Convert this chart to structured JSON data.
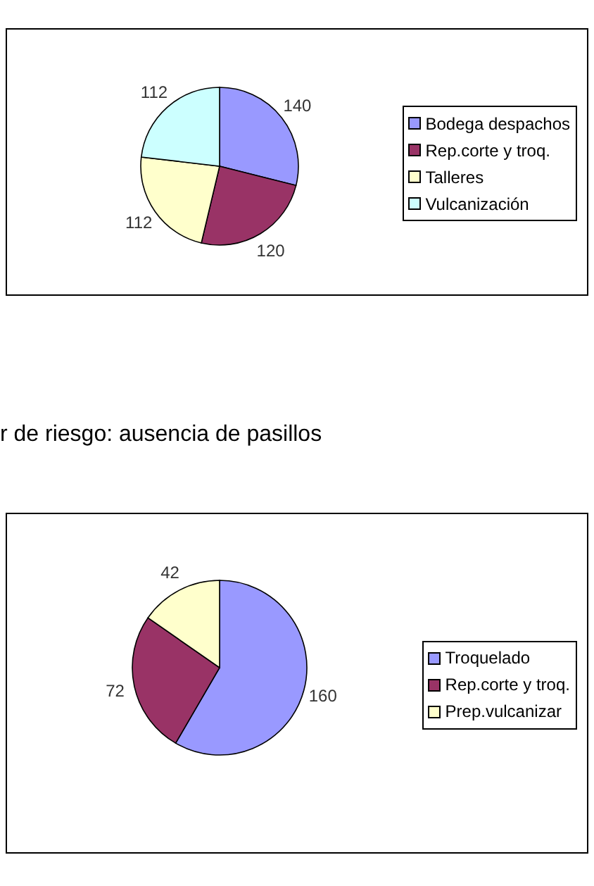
{
  "chart_data": [
    {
      "type": "pie",
      "categories": [
        "Bodega despachos",
        "Rep.corte y troq.",
        "Talleres",
        "Vulcanización"
      ],
      "values": [
        140,
        120,
        112,
        112
      ],
      "colors": [
        "#9999ff",
        "#993366",
        "#ffffcc",
        "#ccffff"
      ],
      "data_labels": true,
      "legend": "right"
    },
    {
      "type": "pie",
      "title": "r de riesgo: ausencia de pasillos",
      "categories": [
        "Troquelado",
        "Rep.corte y troq.",
        "Prep.vulcanizar"
      ],
      "values": [
        160,
        72,
        42
      ],
      "colors": [
        "#9999ff",
        "#993366",
        "#ffffcc"
      ],
      "data_labels": true,
      "legend": "right"
    }
  ]
}
